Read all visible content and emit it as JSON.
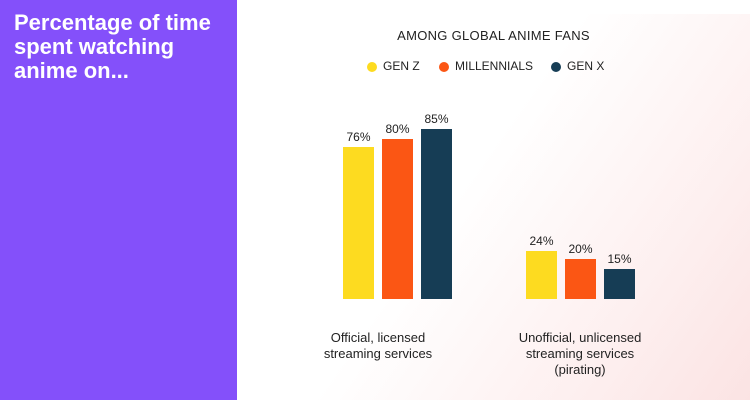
{
  "sidebar": {
    "title": "Percentage of time spent watching anime on..."
  },
  "colors": {
    "sidebar": "#8450fa",
    "gen_z": "#fddb20",
    "millennials": "#fb5614",
    "gen_x": "#163d55"
  },
  "chart_data": {
    "type": "bar",
    "title": "AMONG GLOBAL ANIME FANS",
    "categories": [
      "Official, licensed streaming services",
      "Unofficial, unlicensed streaming services (pirating)"
    ],
    "category_lines": [
      [
        "Official, licensed",
        "streaming services"
      ],
      [
        "Unofficial, unlicensed",
        "streaming services",
        "(pirating)"
      ]
    ],
    "series": [
      {
        "name": "GEN Z",
        "color": "#fddb20",
        "values": [
          76,
          24
        ]
      },
      {
        "name": "MILLENNIALS",
        "color": "#fb5614",
        "values": [
          80,
          20
        ]
      },
      {
        "name": "GEN X",
        "color": "#163d55",
        "values": [
          85,
          15
        ]
      }
    ],
    "data_labels": [
      [
        "76%",
        "24%"
      ],
      [
        "80%",
        "20%"
      ],
      [
        "85%",
        "15%"
      ]
    ],
    "ylim": [
      0,
      85
    ],
    "legend_position": "top",
    "grid": false
  }
}
